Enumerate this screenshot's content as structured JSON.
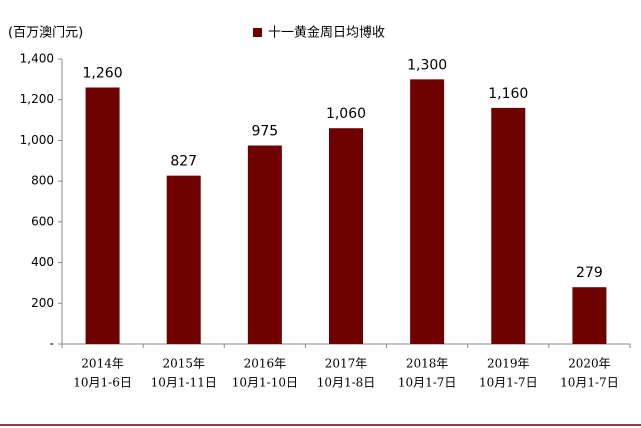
{
  "chart_data": {
    "type": "bar",
    "y_axis_label": "(百万澳门元)",
    "categories": [
      [
        "2014年",
        "10月1-6日"
      ],
      [
        "2015年",
        "10月1-11日"
      ],
      [
        "2016年",
        "10月1-10日"
      ],
      [
        "2017年",
        "10月1-8日"
      ],
      [
        "2018年",
        "10月1-7日"
      ],
      [
        "2019年",
        "10月1-7日"
      ],
      [
        "2020年",
        "10月1-7日"
      ]
    ],
    "series": [
      {
        "name": "十一黄金周日均博收",
        "color": "#6e0000",
        "values": [
          1260,
          827,
          975,
          1060,
          1300,
          1160,
          279
        ],
        "value_labels": [
          "1,260",
          "827",
          "975",
          "1,060",
          "1,300",
          "1,160",
          "279"
        ]
      }
    ],
    "ylim": [
      0,
      1400
    ],
    "yticks": [
      {
        "value": 0,
        "label": "-"
      },
      200,
      400,
      600,
      800,
      {
        "value": 1000,
        "label": "1,000"
      },
      {
        "value": 1200,
        "label": "1,200"
      },
      {
        "value": 1400,
        "label": "1,400"
      }
    ]
  }
}
